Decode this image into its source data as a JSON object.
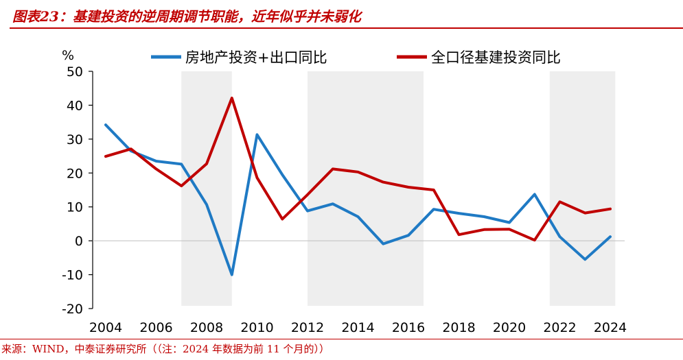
{
  "header": {
    "title": "图表23：基建投资的逆周期调节职能，近年似乎并未弱化"
  },
  "footer": {
    "source": "来源：WIND，中泰证券研究所（（注：2024 年数据为前 11 个月的））"
  },
  "colors": {
    "accent": "#c00000",
    "series_blue": "#1f7ac4",
    "series_red": "#c00000",
    "shade": "#eeeeee"
  },
  "chart_data": {
    "type": "line",
    "title": "",
    "ylabel": "%",
    "xlabel": "",
    "ylim": [
      -20,
      50
    ],
    "yticks": [
      "50",
      "40",
      "30",
      "20",
      "10",
      "0",
      "-10",
      "-20"
    ],
    "xticks": [
      "2004",
      "2006",
      "2008",
      "2010",
      "2012",
      "2014",
      "2016",
      "2018",
      "2020",
      "2022",
      "2024"
    ],
    "x": [
      2004,
      2005,
      2006,
      2007,
      2008,
      2009,
      2010,
      2011,
      2012,
      2013,
      2014,
      2015,
      2016,
      2017,
      2018,
      2019,
      2020,
      2021,
      2022,
      2023,
      2024
    ],
    "shaded_periods": [
      [
        2007,
        2009
      ],
      [
        2012,
        2016.6
      ],
      [
        2021.6,
        2024.2
      ]
    ],
    "legend_position": "top",
    "series": [
      {
        "name": "房地产投资+出口同比",
        "color": "#1f7ac4",
        "values": [
          34.2,
          26.5,
          23.5,
          22.6,
          10.7,
          -10.0,
          31.3,
          19.5,
          8.8,
          10.9,
          7.1,
          -0.9,
          1.6,
          9.3,
          8.1,
          7.1,
          5.4,
          13.7,
          1.2,
          -5.5,
          1.2
        ]
      },
      {
        "name": "全口径基建投资同比",
        "color": "#c00000",
        "values": [
          24.9,
          27.1,
          21.2,
          16.2,
          22.7,
          42.1,
          18.6,
          6.4,
          13.6,
          21.2,
          20.3,
          17.3,
          15.8,
          15.0,
          1.8,
          3.3,
          3.4,
          0.2,
          11.5,
          8.2,
          9.4
        ]
      }
    ]
  }
}
